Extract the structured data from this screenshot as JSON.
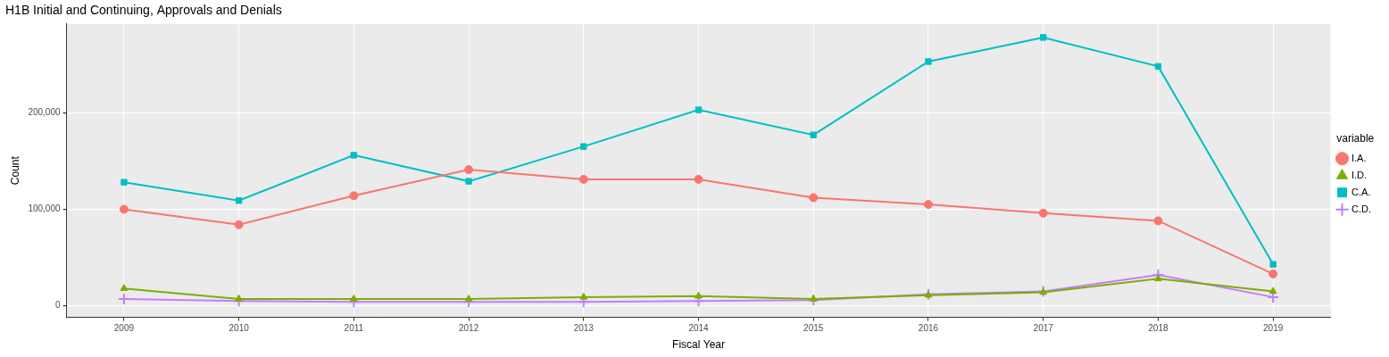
{
  "chart_data": {
    "type": "line",
    "title": "H1B Initial and Continuing, Approvals and Denials",
    "x_label": "Fiscal Year",
    "y_label": "Count",
    "legend_title": "variable",
    "legend": "right",
    "grid": true,
    "categories": [
      "2009",
      "2010",
      "2011",
      "2012",
      "2013",
      "2014",
      "2015",
      "2016",
      "2017",
      "2018",
      "2019"
    ],
    "series": [
      {
        "name": "I.A.",
        "color": "#F8766D",
        "marker": "circle",
        "values": [
          100000,
          84000,
          114000,
          141000,
          131000,
          131000,
          112000,
          105000,
          96000,
          88000,
          33000
        ]
      },
      {
        "name": "I.D.",
        "color": "#7CAE00",
        "marker": "triangle",
        "values": [
          18000,
          7000,
          7000,
          7000,
          9000,
          10000,
          7000,
          11000,
          14000,
          28000,
          15000
        ]
      },
      {
        "name": "C.A.",
        "color": "#00BFC4",
        "marker": "square",
        "values": [
          128000,
          109000,
          156000,
          129000,
          165000,
          203000,
          177000,
          253000,
          278000,
          248000,
          43000
        ]
      },
      {
        "name": "C.D.",
        "color": "#C77CFF",
        "marker": "plus",
        "values": [
          7000,
          5000,
          4000,
          4000,
          4000,
          5000,
          6000,
          12000,
          15000,
          32000,
          9000
        ]
      }
    ],
    "ylim": [
      -12000,
      292000
    ],
    "yticks": [
      {
        "value": 0,
        "label": "0"
      },
      {
        "value": 100000,
        "label": "100,000"
      },
      {
        "value": 200000,
        "label": "200,000"
      }
    ]
  }
}
